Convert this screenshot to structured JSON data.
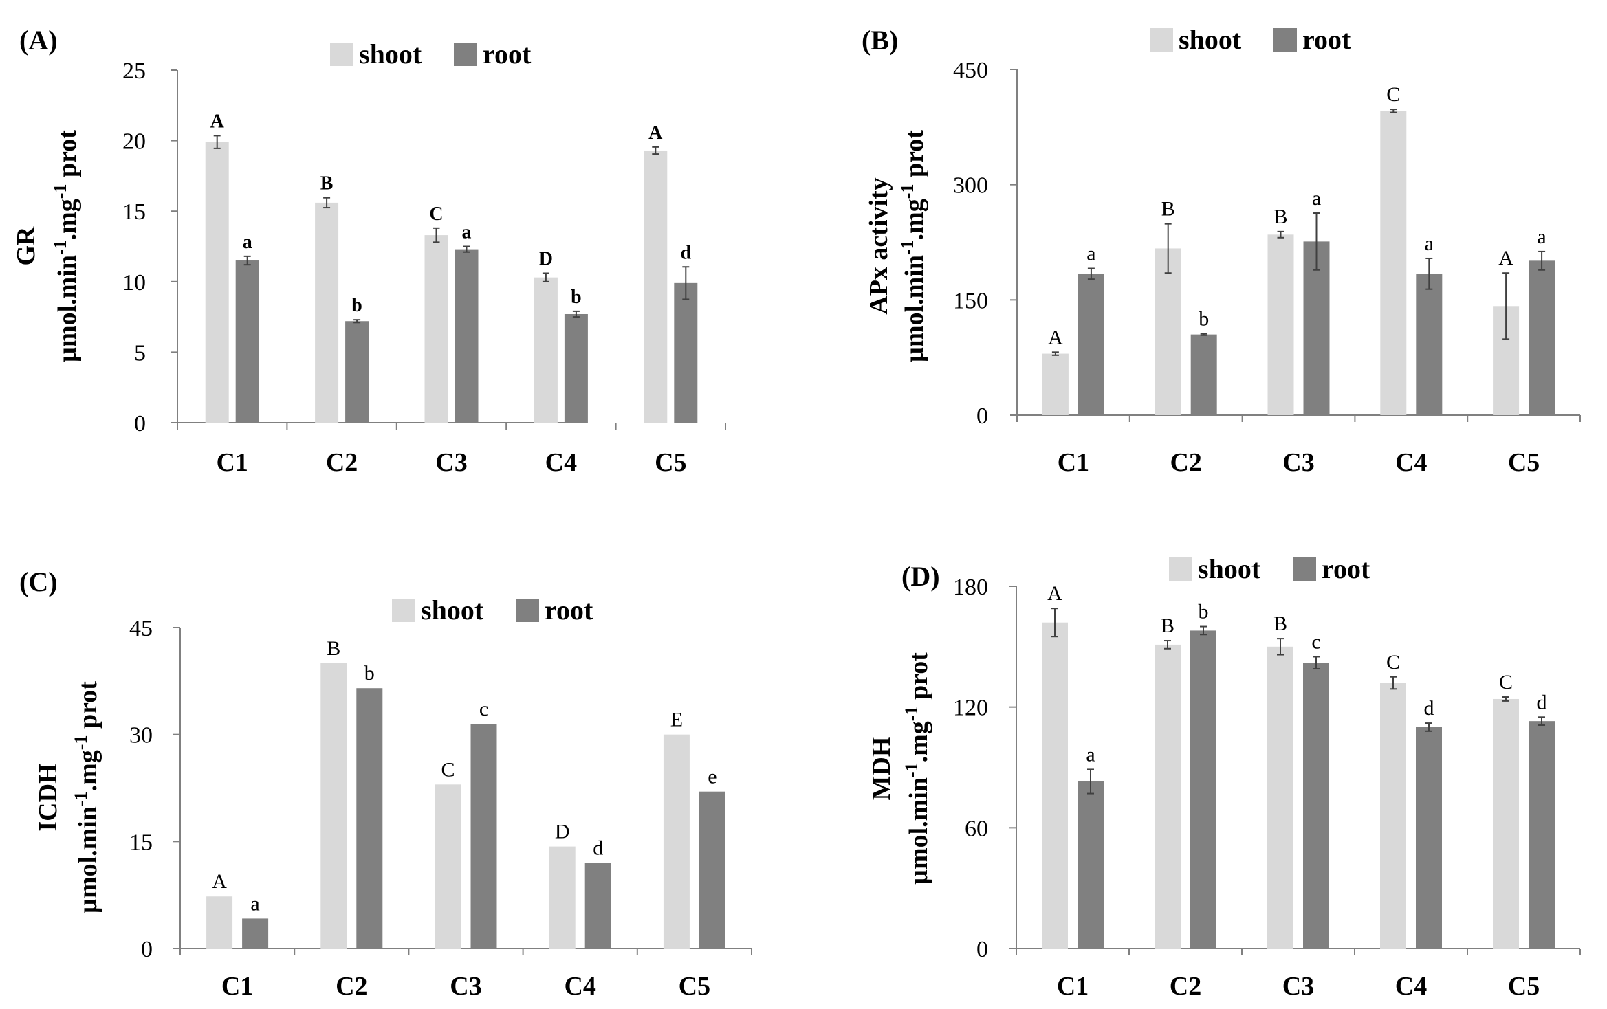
{
  "colors": {
    "shoot": "#d9d9d9",
    "root": "#808080",
    "axis": "#808080",
    "error": "#404040"
  },
  "chart_data": [
    {
      "type": "bar",
      "panel_label": "(A)",
      "title": "",
      "ylabel_line1": "GR",
      "ylabel_line2": "µmol.min-1.mg-1 prot",
      "ylabel_parts": [
        "µmol.min",
        "-1",
        ".mg",
        "-1",
        " prot"
      ],
      "ylim": [
        0,
        25
      ],
      "yticks": [
        0,
        5,
        10,
        15,
        20,
        25
      ],
      "categories": [
        "C1",
        "C2",
        "C3",
        "C4",
        "C5"
      ],
      "legend": [
        "shoot",
        "root"
      ],
      "series": [
        {
          "name": "shoot",
          "values": [
            19.9,
            15.6,
            13.3,
            10.3,
            19.3
          ],
          "errors": [
            0.45,
            0.35,
            0.5,
            0.3,
            0.25
          ],
          "letters": [
            "A",
            "B",
            "C",
            "D",
            "A"
          ]
        },
        {
          "name": "root",
          "values": [
            11.5,
            7.2,
            12.3,
            7.7,
            9.9
          ],
          "errors": [
            0.3,
            0.1,
            0.2,
            0.2,
            1.15
          ],
          "letters": [
            "a",
            "b",
            "a",
            "b",
            "d"
          ]
        }
      ]
    },
    {
      "type": "bar",
      "panel_label": "(B)",
      "title": "",
      "ylabel_line1": "APx activity",
      "ylabel_line2": "µmol.min-1.mg-1 prot",
      "ylabel_parts": [
        "µmol.min",
        "-1",
        ".mg",
        "-1",
        " prot"
      ],
      "ylim": [
        0,
        450
      ],
      "yticks": [
        0,
        150,
        300,
        450
      ],
      "categories": [
        "C1",
        "C2",
        "C3",
        "C4",
        "C5"
      ],
      "legend": [
        "shoot",
        "root"
      ],
      "series": [
        {
          "name": "shoot",
          "values": [
            80,
            217,
            235,
            396,
            142
          ],
          "errors": [
            2,
            32,
            4,
            2,
            43
          ],
          "letters": [
            "A",
            "B",
            "B",
            "C",
            "A"
          ]
        },
        {
          "name": "root",
          "values": [
            184,
            105,
            226,
            184,
            201
          ],
          "errors": [
            7,
            1,
            37,
            20,
            12
          ],
          "letters": [
            "a",
            "b",
            "a",
            "a",
            "a"
          ]
        }
      ]
    },
    {
      "type": "bar",
      "panel_label": "(C)",
      "title": "",
      "ylabel_line1": "ICDH",
      "ylabel_line2": "µmol.min-1.mg-1 prot",
      "ylabel_parts": [
        "µmol.min",
        "-1",
        ".mg",
        "-1",
        " prot"
      ],
      "ylim": [
        0,
        45
      ],
      "yticks": [
        0,
        15,
        30,
        45
      ],
      "categories": [
        "C1",
        "C2",
        "C3",
        "C4",
        "C5"
      ],
      "legend": [
        "shoot",
        "root"
      ],
      "series": [
        {
          "name": "shoot",
          "values": [
            7.3,
            40.0,
            23.0,
            14.3,
            30.0
          ],
          "errors": [
            0,
            0,
            0,
            0,
            0
          ],
          "letters": [
            "A",
            "B",
            "C",
            "D",
            "E"
          ]
        },
        {
          "name": "root",
          "values": [
            4.2,
            36.5,
            31.5,
            12.0,
            22.0
          ],
          "errors": [
            0,
            0,
            0,
            0,
            0
          ],
          "letters": [
            "a",
            "b",
            "c",
            "d",
            "e"
          ]
        }
      ]
    },
    {
      "type": "bar",
      "panel_label": "(D)",
      "title": "",
      "ylabel_line1": "MDH",
      "ylabel_line2": "µmol.min-1.mg-1 prot",
      "ylabel_parts": [
        "µmol.min",
        "-1",
        ".mg",
        "-1",
        " prot"
      ],
      "ylim": [
        0,
        180
      ],
      "yticks": [
        0,
        60,
        120,
        180
      ],
      "categories": [
        "C1",
        "C2",
        "C3",
        "C4",
        "C5"
      ],
      "legend": [
        "shoot",
        "root"
      ],
      "series": [
        {
          "name": "shoot",
          "values": [
            162,
            151,
            150,
            132,
            124
          ],
          "errors": [
            7,
            2,
            4,
            3,
            1
          ],
          "letters": [
            "A",
            "B",
            "B",
            "C",
            "C"
          ]
        },
        {
          "name": "root",
          "values": [
            83,
            158,
            142,
            110,
            113
          ],
          "errors": [
            6,
            2,
            3,
            2,
            2
          ],
          "letters": [
            "a",
            "b",
            "c",
            "d",
            "d"
          ]
        }
      ]
    }
  ]
}
